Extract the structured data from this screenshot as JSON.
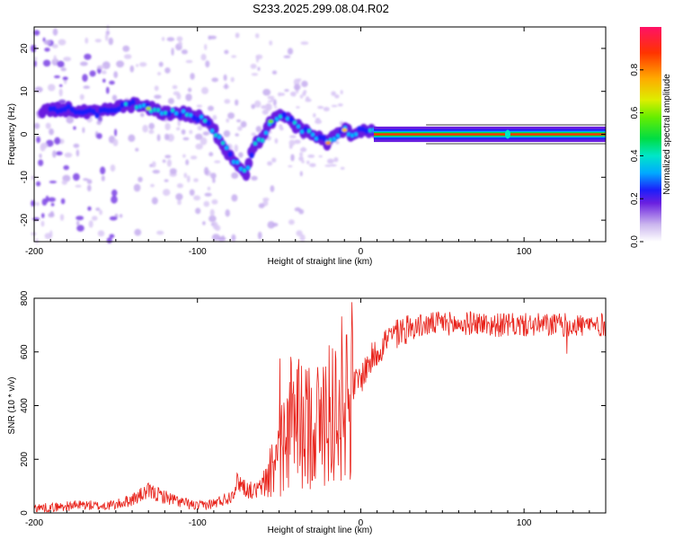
{
  "title": "S233.2025.299.08.04.R02",
  "chart_data": [
    {
      "type": "heatmap",
      "xlabel": "Height of straight line (km)",
      "ylabel": "Frequency (Hz)",
      "xlim": [
        -200,
        150
      ],
      "ylim": [
        -25,
        25
      ],
      "x_ticks": [
        -200,
        -100,
        0,
        100
      ],
      "y_ticks": [
        -20,
        -10,
        0,
        10,
        20
      ],
      "ridge": {
        "x": [
          -195,
          -180,
          -170,
          -160,
          -150,
          -140,
          -130,
          -120,
          -110,
          -100,
          -95,
          -90,
          -85,
          -80,
          -75,
          -70,
          -65,
          -60,
          -55,
          -50,
          -45,
          -40,
          -35,
          -30,
          -25,
          -20,
          -15,
          -10,
          -5,
          0,
          5,
          10,
          20,
          40,
          60,
          80,
          90,
          100,
          150
        ],
        "y": [
          5,
          6,
          5,
          5,
          6,
          7,
          6,
          5,
          5,
          4,
          3,
          1,
          -2,
          -5,
          -7,
          -9,
          -2,
          -1,
          3,
          4,
          4,
          2,
          1,
          0,
          -1,
          -2,
          0,
          1,
          0,
          1,
          1,
          0,
          0,
          0,
          0,
          0,
          0,
          0,
          0
        ]
      },
      "colorbar": {
        "label": "Normalized spectral amplitude",
        "min": 0.0,
        "max": 1.0,
        "ticks": [
          "0.0",
          "0.2",
          "0.4",
          "0.6",
          "0.8"
        ],
        "tick_values": [
          0.0,
          0.2,
          0.4,
          0.6,
          0.8
        ]
      }
    },
    {
      "type": "line",
      "xlabel": "Height of straight line (km)",
      "ylabel": "SNR (10 * v/v)",
      "xlim": [
        -200,
        150
      ],
      "ylim": [
        0,
        800
      ],
      "x_ticks": [
        -200,
        -100,
        0,
        100
      ],
      "y_ticks": [
        0,
        200,
        400,
        600,
        800
      ],
      "color": "#e8221a",
      "series": [
        {
          "name": "SNR",
          "x": [
            -200,
            -190,
            -180,
            -170,
            -160,
            -150,
            -140,
            -130,
            -120,
            -110,
            -100,
            -90,
            -80,
            -75,
            -70,
            -65,
            -60,
            -55,
            -50,
            -45,
            -40,
            -35,
            -30,
            -25,
            -20,
            -15,
            -10,
            -5,
            0,
            5,
            10,
            15,
            20,
            25,
            30,
            40,
            50,
            60,
            70,
            80,
            90,
            100,
            110,
            120,
            130,
            140,
            150
          ],
          "values": [
            20,
            20,
            25,
            30,
            25,
            30,
            50,
            80,
            60,
            40,
            25,
            35,
            60,
            120,
            90,
            80,
            100,
            160,
            220,
            300,
            380,
            300,
            360,
            320,
            380,
            400,
            430,
            470,
            500,
            560,
            600,
            640,
            660,
            680,
            690,
            700,
            710,
            700,
            710,
            700,
            700,
            700,
            700,
            700,
            700,
            700,
            700
          ]
        }
      ]
    }
  ]
}
